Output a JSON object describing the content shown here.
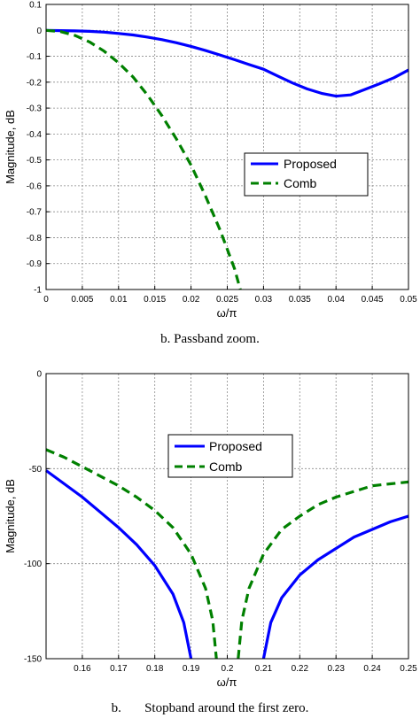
{
  "chart_data": [
    {
      "type": "line",
      "caption": "b. Passband zoom.",
      "xlabel": "ω/π",
      "ylabel": "Magnitude, dB",
      "xlim": [
        0,
        0.05
      ],
      "ylim": [
        -1,
        0.1
      ],
      "xticks": [
        0,
        0.005,
        0.01,
        0.015,
        0.02,
        0.025,
        0.03,
        0.035,
        0.04,
        0.045,
        0.05
      ],
      "xtick_labels": [
        "0",
        "0.005",
        "0.01",
        "0.015",
        "0.02",
        "0.025",
        "0.03",
        "0.035",
        "0.04",
        "0.045",
        "0.05"
      ],
      "yticks": [
        0.1,
        0,
        -0.1,
        -0.2,
        -0.3,
        -0.4,
        -0.5,
        -0.6,
        -0.7,
        -0.8,
        -0.9,
        -1
      ],
      "ytick_labels": [
        "0.1",
        "0",
        "-0.1",
        "-0.2",
        "-0.3",
        "-0.4",
        "-0.5",
        "-0.6",
        "-0.7",
        "-0.8",
        "-0.9",
        "-1"
      ],
      "grid": true,
      "legend_position": "center-right",
      "series": [
        {
          "name": "Proposed",
          "color": "#0000ff",
          "style": "solid",
          "x": [
            0,
            0.002,
            0.004,
            0.006,
            0.008,
            0.01,
            0.012,
            0.014,
            0.016,
            0.018,
            0.02,
            0.022,
            0.024,
            0.026,
            0.028,
            0.03,
            0.032,
            0.034,
            0.036,
            0.038,
            0.04,
            0.042,
            0.044,
            0.046,
            0.048,
            0.05
          ],
          "y": [
            0,
            -0.001,
            -0.002,
            -0.004,
            -0.007,
            -0.012,
            -0.018,
            -0.026,
            -0.036,
            -0.048,
            -0.062,
            -0.078,
            -0.095,
            -0.113,
            -0.132,
            -0.15,
            -0.177,
            -0.203,
            -0.226,
            -0.243,
            -0.254,
            -0.249,
            -0.228,
            -0.206,
            -0.183,
            -0.153
          ]
        },
        {
          "name": "Comb",
          "color": "#008000",
          "style": "dashed",
          "x": [
            0,
            0.002,
            0.004,
            0.006,
            0.008,
            0.01,
            0.012,
            0.014,
            0.016,
            0.018,
            0.02,
            0.022,
            0.024,
            0.025,
            0.026,
            0.0268
          ],
          "y": [
            0,
            -0.005,
            -0.02,
            -0.045,
            -0.08,
            -0.125,
            -0.18,
            -0.25,
            -0.33,
            -0.42,
            -0.52,
            -0.64,
            -0.77,
            -0.845,
            -0.92,
            -1.0
          ]
        }
      ]
    },
    {
      "type": "line",
      "caption": "b.       Stopband around the first zero.",
      "xlabel": "ω/π",
      "ylabel": "Magnitude, dB",
      "xlim": [
        0.15,
        0.25
      ],
      "ylim": [
        -150,
        0
      ],
      "xticks": [
        0.16,
        0.17,
        0.18,
        0.19,
        0.2,
        0.21,
        0.22,
        0.23,
        0.24,
        0.25
      ],
      "xtick_labels": [
        "0.16",
        "0.17",
        "0.18",
        "0.19",
        "0.2",
        "0.21",
        "0.22",
        "0.23",
        "0.24",
        "0.25"
      ],
      "yticks": [
        0,
        -50,
        -100,
        -150
      ],
      "ytick_labels": [
        "0",
        "-50",
        "-100",
        "-150"
      ],
      "grid": true,
      "legend_position": "center",
      "series": [
        {
          "name": "Proposed",
          "color": "#0000ff",
          "style": "solid",
          "segments": [
            {
              "x": [
                0.15,
                0.155,
                0.16,
                0.165,
                0.17,
                0.175,
                0.18,
                0.185,
                0.188,
                0.19
              ],
              "y": [
                -51,
                -58,
                -65,
                -73,
                -81,
                -90,
                -101,
                -116,
                -131,
                -150
              ]
            },
            {
              "x": [
                0.21,
                0.212,
                0.215,
                0.22,
                0.225,
                0.23,
                0.235,
                0.24,
                0.245,
                0.25
              ],
              "y": [
                -150,
                -131,
                -118,
                -106,
                -98,
                -92,
                -86,
                -82,
                -78,
                -75
              ]
            }
          ]
        },
        {
          "name": "Comb",
          "color": "#008000",
          "style": "dashed",
          "segments": [
            {
              "x": [
                0.15,
                0.155,
                0.16,
                0.165,
                0.17,
                0.175,
                0.18,
                0.185,
                0.19,
                0.194,
                0.196,
                0.197
              ],
              "y": [
                -40,
                -44,
                -49,
                -54,
                -59,
                -65,
                -72,
                -81,
                -95,
                -113,
                -130,
                -150
              ]
            },
            {
              "x": [
                0.203,
                0.204,
                0.206,
                0.21,
                0.215,
                0.22,
                0.225,
                0.23,
                0.235,
                0.24,
                0.245,
                0.25
              ],
              "y": [
                -150,
                -130,
                -113,
                -95,
                -82,
                -75,
                -69,
                -65,
                -62,
                -59,
                -58,
                -57
              ]
            }
          ]
        }
      ]
    }
  ]
}
